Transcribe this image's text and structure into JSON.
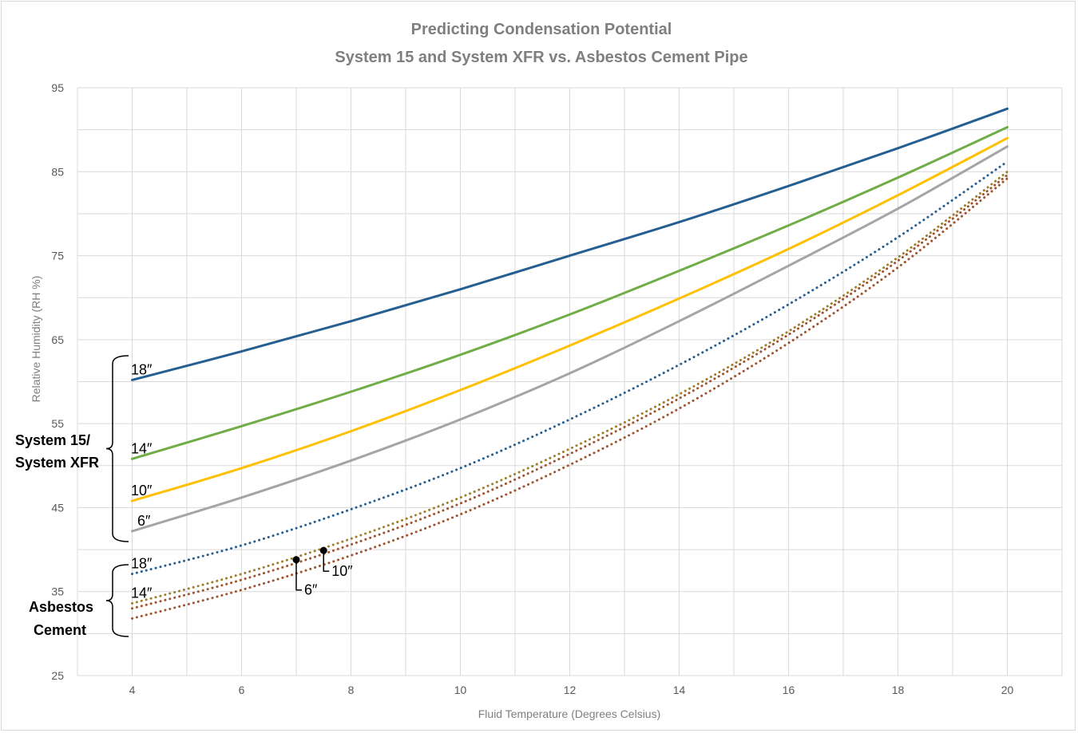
{
  "chart_data": {
    "type": "line",
    "title": "Predicting Condensation Potential",
    "subtitle": "System 15 and System XFR vs. Asbestos Cement Pipe",
    "xlabel": "Fluid Temperature (Degrees Celsius)",
    "ylabel": "Relative Humidity (RH %)",
    "xlim": [
      3,
      21
    ],
    "ylim": [
      25,
      95
    ],
    "xticks": [
      4,
      6,
      8,
      10,
      12,
      14,
      16,
      18,
      20
    ],
    "yticks": [
      25,
      35,
      45,
      55,
      65,
      75,
      85,
      95
    ],
    "grid": true,
    "x": [
      4,
      6,
      8,
      10,
      12,
      14,
      16,
      18,
      20
    ],
    "series": [
      {
        "group": "System 15/ System XFR",
        "size_label": "18″",
        "color": "#255E91",
        "dash": "solid",
        "values": [
          60.2,
          63.6,
          67.2,
          71.0,
          75.0,
          79.0,
          83.3,
          87.8,
          92.5
        ]
      },
      {
        "group": "System 15/ System XFR",
        "size_label": "14″",
        "color": "#70AD47",
        "dash": "solid",
        "values": [
          50.8,
          54.7,
          58.8,
          63.2,
          68.0,
          73.2,
          78.6,
          84.3,
          90.3
        ]
      },
      {
        "group": "System 15/ System XFR",
        "size_label": "10″",
        "color": "#FFC000",
        "dash": "solid",
        "values": [
          45.8,
          49.7,
          54.1,
          59.0,
          64.3,
          69.9,
          75.8,
          82.2,
          89.0
        ]
      },
      {
        "group": "System 15/ System XFR",
        "size_label": "6″",
        "color": "#A5A5A5",
        "dash": "solid",
        "values": [
          42.2,
          46.2,
          50.6,
          55.5,
          61.0,
          67.2,
          73.8,
          80.6,
          88.0
        ]
      },
      {
        "group": "Asbestos Cement",
        "size_label": "18″",
        "color": "#255E91",
        "dash": "dotted",
        "values": [
          37.1,
          40.5,
          44.8,
          49.7,
          55.5,
          62.0,
          69.2,
          77.2,
          86.2
        ]
      },
      {
        "group": "Asbestos Cement",
        "size_label": "14″",
        "color": "#9E7E2A",
        "dash": "dotted",
        "values": [
          33.6,
          37.1,
          41.3,
          46.2,
          52.0,
          58.5,
          66.0,
          74.8,
          85.0
        ]
      },
      {
        "group": "Asbestos Cement",
        "size_label": "10″",
        "color": "#A0522D",
        "dash": "dotted",
        "values": [
          33.0,
          36.4,
          40.6,
          45.5,
          51.4,
          58.0,
          65.6,
          74.4,
          84.6
        ]
      },
      {
        "group": "Asbestos Cement",
        "size_label": "6″",
        "color": "#A0522D",
        "dash": "dotted",
        "values": [
          31.8,
          35.2,
          39.3,
          44.2,
          50.1,
          56.8,
          64.6,
          73.6,
          84.2
        ]
      }
    ],
    "markers": [
      {
        "label": "6″",
        "x": 7.0,
        "y": 38.8
      },
      {
        "label": "10″",
        "x": 7.5,
        "y": 39.9
      }
    ],
    "group_labels": {
      "system": [
        "System 15/",
        "System XFR"
      ],
      "asbestos": [
        "Asbestos",
        "Cement"
      ]
    }
  }
}
